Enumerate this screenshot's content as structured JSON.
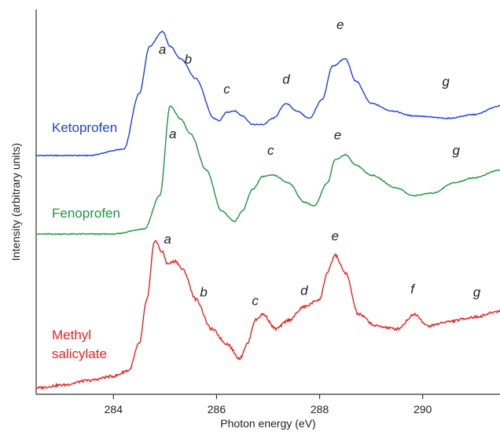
{
  "chart_data": {
    "type": "line",
    "title": "",
    "xlabel": "Photon energy (eV)",
    "ylabel": "Intensity (arbitrary units)",
    "xlim": [
      282.5,
      291.5
    ],
    "x_ticks": [
      284,
      286,
      288,
      290
    ],
    "y_ticks": [],
    "grid": false,
    "offset_stacked": true,
    "series": [
      {
        "name": "Ketoprofen",
        "color": "#1f3fe0",
        "label_lines": [
          "Ketoprofen"
        ],
        "points": [
          [
            282.5,
            0.0
          ],
          [
            283.5,
            0.0
          ],
          [
            284.2,
            0.05
          ],
          [
            284.5,
            0.5
          ],
          [
            284.7,
            0.88
          ],
          [
            284.95,
            1.0
          ],
          [
            285.1,
            0.88
          ],
          [
            285.3,
            0.78
          ],
          [
            285.6,
            0.62
          ],
          [
            285.95,
            0.3
          ],
          [
            286.05,
            0.28
          ],
          [
            286.2,
            0.35
          ],
          [
            286.35,
            0.36
          ],
          [
            286.5,
            0.32
          ],
          [
            286.7,
            0.25
          ],
          [
            286.9,
            0.25
          ],
          [
            287.1,
            0.3
          ],
          [
            287.35,
            0.42
          ],
          [
            287.55,
            0.36
          ],
          [
            287.8,
            0.3
          ],
          [
            288.05,
            0.45
          ],
          [
            288.25,
            0.72
          ],
          [
            288.5,
            0.78
          ],
          [
            288.7,
            0.6
          ],
          [
            289.0,
            0.42
          ],
          [
            289.4,
            0.36
          ],
          [
            289.8,
            0.32
          ],
          [
            290.5,
            0.3
          ],
          [
            291.0,
            0.33
          ],
          [
            291.5,
            0.4
          ]
        ],
        "peak_labels": [
          {
            "text": "a",
            "x": 284.95,
            "y": 0.82
          },
          {
            "text": "b",
            "x": 285.45,
            "y": 0.74
          },
          {
            "text": "c",
            "x": 286.2,
            "y": 0.5
          },
          {
            "text": "d",
            "x": 287.35,
            "y": 0.58
          },
          {
            "text": "e",
            "x": 288.4,
            "y": 1.02
          },
          {
            "text": "g",
            "x": 290.45,
            "y": 0.56
          }
        ]
      },
      {
        "name": "Fenoprofen",
        "color": "#1e9440",
        "label_lines": [
          "Fenoprofen"
        ],
        "points": [
          [
            282.5,
            0.0
          ],
          [
            284.0,
            0.0
          ],
          [
            284.6,
            0.04
          ],
          [
            284.9,
            0.3
          ],
          [
            285.1,
            1.0
          ],
          [
            285.3,
            0.9
          ],
          [
            285.5,
            0.78
          ],
          [
            285.8,
            0.5
          ],
          [
            286.1,
            0.18
          ],
          [
            286.35,
            0.1
          ],
          [
            286.5,
            0.18
          ],
          [
            286.7,
            0.35
          ],
          [
            286.9,
            0.45
          ],
          [
            287.1,
            0.46
          ],
          [
            287.4,
            0.4
          ],
          [
            287.7,
            0.25
          ],
          [
            287.9,
            0.22
          ],
          [
            288.15,
            0.4
          ],
          [
            288.3,
            0.58
          ],
          [
            288.5,
            0.62
          ],
          [
            288.7,
            0.54
          ],
          [
            289.0,
            0.46
          ],
          [
            289.5,
            0.36
          ],
          [
            289.8,
            0.3
          ],
          [
            290.2,
            0.32
          ],
          [
            290.6,
            0.4
          ],
          [
            291.0,
            0.44
          ],
          [
            291.5,
            0.5
          ]
        ],
        "peak_labels": [
          {
            "text": "a",
            "x": 285.15,
            "y": 0.75
          },
          {
            "text": "c",
            "x": 287.05,
            "y": 0.62
          },
          {
            "text": "e",
            "x": 288.35,
            "y": 0.74
          },
          {
            "text": "g",
            "x": 290.65,
            "y": 0.62
          }
        ]
      },
      {
        "name": "Methyl salicylate",
        "color": "#e52222",
        "label_lines": [
          "Methyl",
          "salicylate"
        ],
        "points": [
          [
            282.5,
            0.0
          ],
          [
            283.0,
            0.02
          ],
          [
            283.5,
            0.05
          ],
          [
            284.0,
            0.08
          ],
          [
            284.3,
            0.12
          ],
          [
            284.5,
            0.3
          ],
          [
            284.65,
            0.6
          ],
          [
            284.8,
            1.0
          ],
          [
            284.95,
            0.92
          ],
          [
            285.05,
            0.84
          ],
          [
            285.2,
            0.86
          ],
          [
            285.35,
            0.8
          ],
          [
            285.6,
            0.6
          ],
          [
            285.9,
            0.4
          ],
          [
            286.2,
            0.3
          ],
          [
            286.45,
            0.2
          ],
          [
            286.6,
            0.3
          ],
          [
            286.75,
            0.46
          ],
          [
            286.9,
            0.5
          ],
          [
            287.15,
            0.4
          ],
          [
            287.4,
            0.46
          ],
          [
            287.7,
            0.55
          ],
          [
            288.0,
            0.6
          ],
          [
            288.15,
            0.78
          ],
          [
            288.3,
            0.9
          ],
          [
            288.5,
            0.78
          ],
          [
            288.75,
            0.5
          ],
          [
            289.1,
            0.42
          ],
          [
            289.5,
            0.4
          ],
          [
            289.85,
            0.5
          ],
          [
            290.1,
            0.42
          ],
          [
            290.5,
            0.45
          ],
          [
            291.0,
            0.48
          ],
          [
            291.5,
            0.52
          ]
        ],
        "peak_labels": [
          {
            "text": "a",
            "x": 285.05,
            "y": 0.98
          },
          {
            "text": "b",
            "x": 285.75,
            "y": 0.62
          },
          {
            "text": "c",
            "x": 286.75,
            "y": 0.56
          },
          {
            "text": "d",
            "x": 287.7,
            "y": 0.63
          },
          {
            "text": "e",
            "x": 288.3,
            "y": 1.0
          },
          {
            "text": "f",
            "x": 289.8,
            "y": 0.64
          },
          {
            "text": "g",
            "x": 291.05,
            "y": 0.62
          }
        ]
      }
    ]
  }
}
